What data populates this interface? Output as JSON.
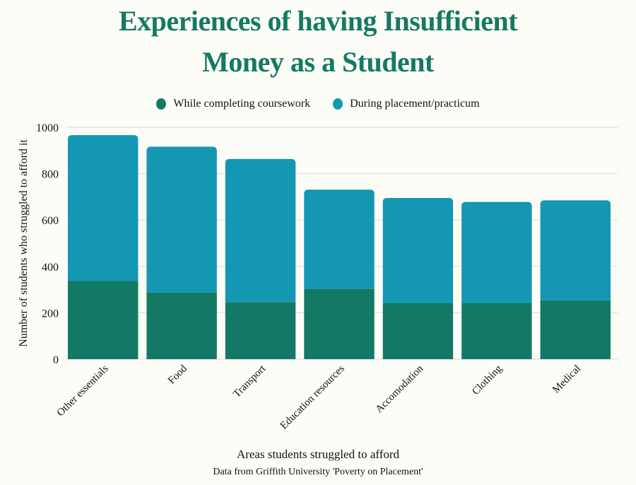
{
  "chart_data": {
    "type": "bar",
    "stacked": true,
    "title_line1": "Experiences of having Insufficient",
    "title_line2": "Money as a Student",
    "xlabel": "Areas students struggled to afford",
    "ylabel": "Number of students who struggled to afford it",
    "source": "Data from Griffith University 'Poverty on Placement'",
    "ylim": [
      0,
      1000
    ],
    "yticks": [
      0,
      200,
      400,
      600,
      800,
      1000
    ],
    "grid": true,
    "legend_position": "top",
    "categories": [
      "Other essentials",
      "Food",
      "Transport",
      "Education resources",
      "Accomodation",
      "Clothing",
      "Medical"
    ],
    "series": [
      {
        "name": "While completing coursework",
        "color": "#137964",
        "values": [
          337,
          287,
          246,
          303,
          241,
          241,
          254
        ]
      },
      {
        "name": "During placement/practicum",
        "color": "#1497b2",
        "values": [
          629,
          629,
          617,
          428,
          454,
          437,
          431
        ]
      }
    ]
  }
}
